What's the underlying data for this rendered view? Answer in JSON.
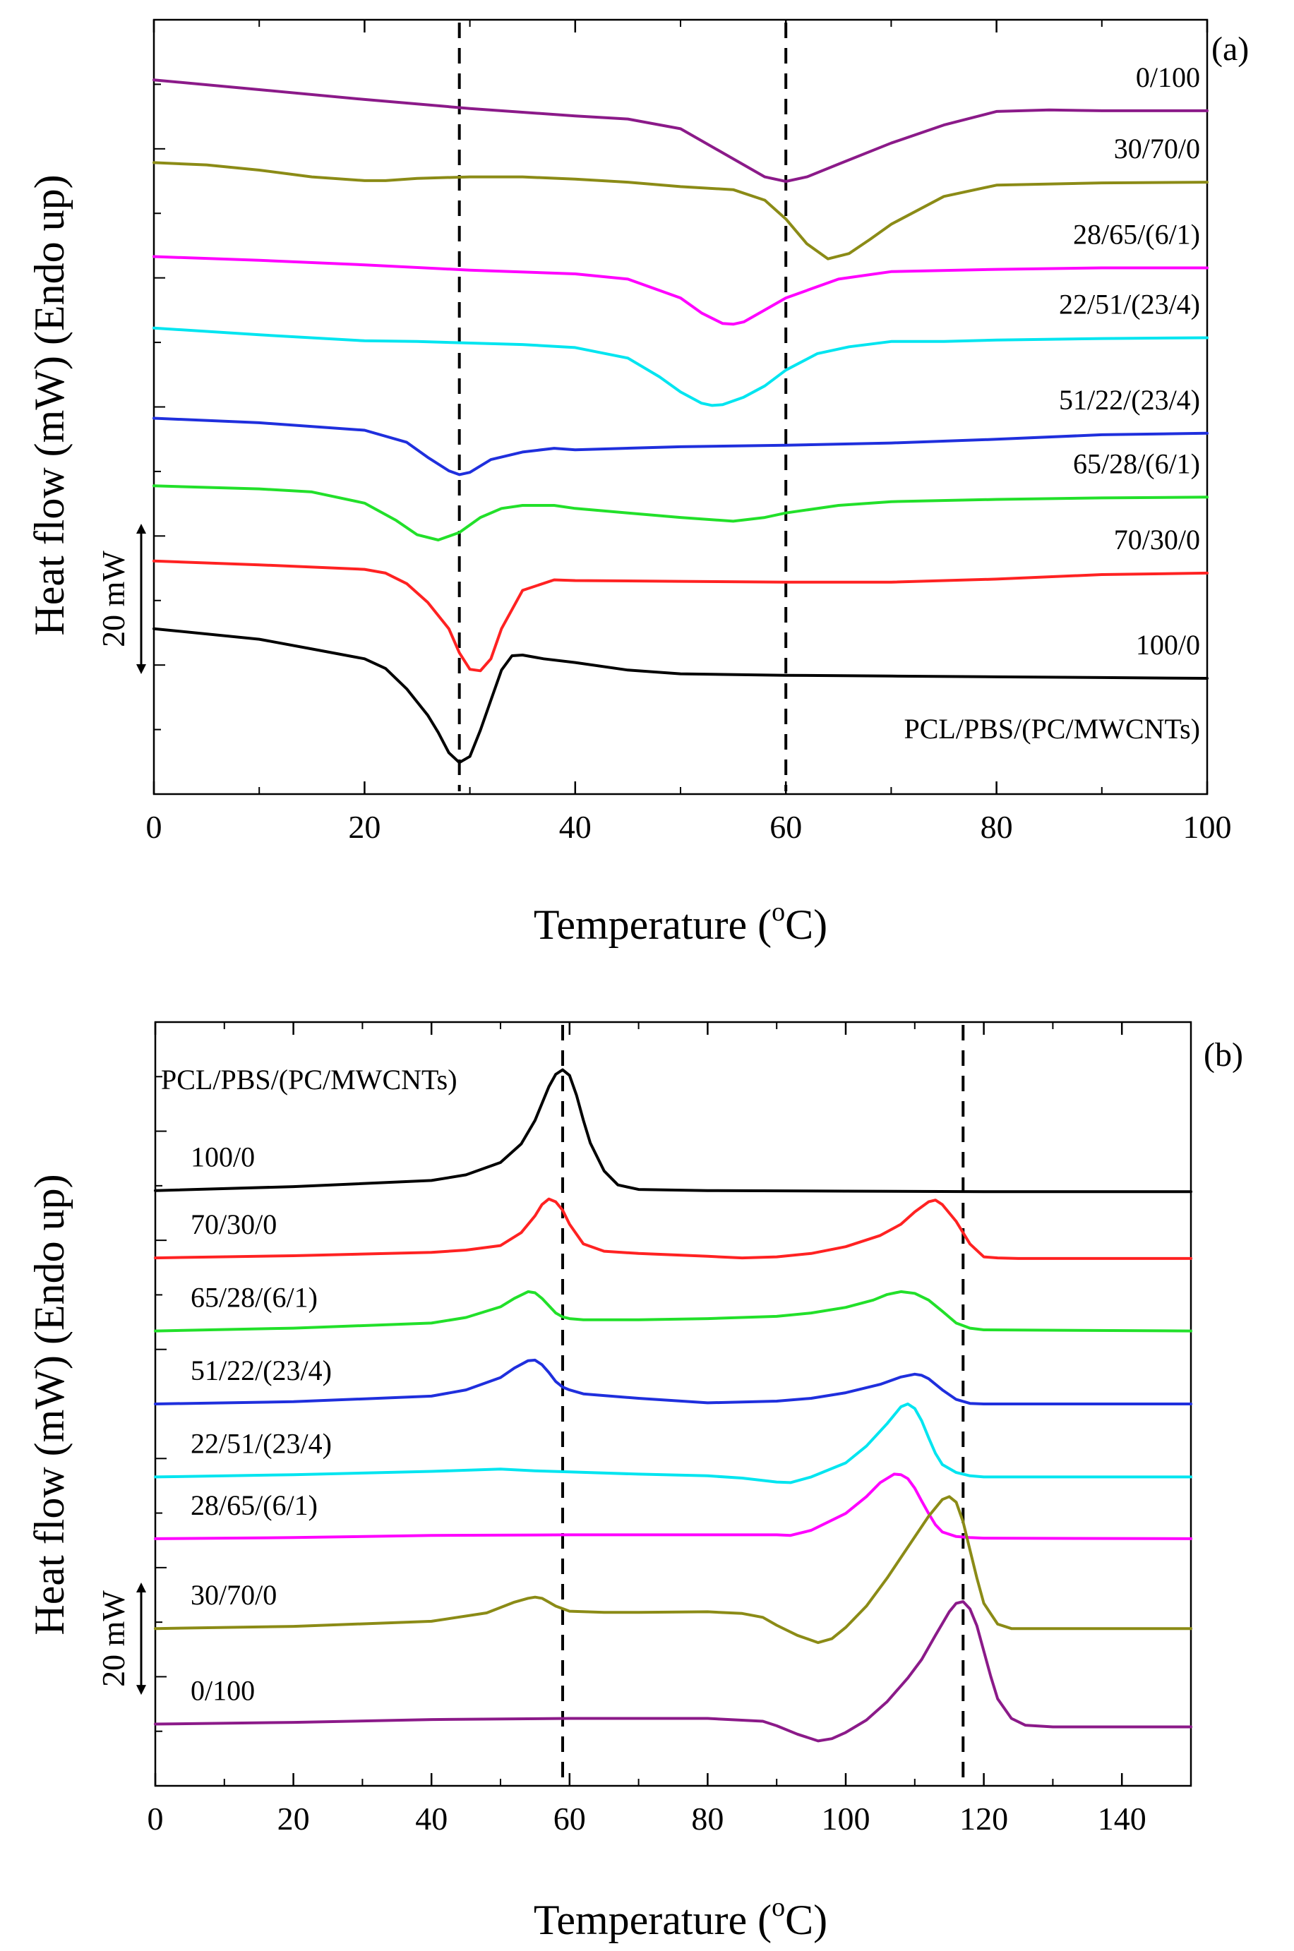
{
  "chart_data": [
    {
      "type": "line",
      "title": "(a)",
      "xlabel": "Temperature (°C)",
      "xlabel_main": "Temperature (",
      "xlabel_sup": "o",
      "xlabel_end": "C)",
      "ylabel": "Heat flow (mW) (Endo up)",
      "xlim": [
        0,
        100
      ],
      "x_ticks": [
        0,
        20,
        40,
        60,
        80,
        100
      ],
      "x_tick_labels": [
        "0",
        "20",
        "40",
        "60",
        "80",
        "100"
      ],
      "dashed_lines_x": [
        29,
        60
      ],
      "scale_bar": "20 mW",
      "scale_bar_value_mW": 20,
      "legend_title": "PCL/PBS/(PC/MWCNTs)",
      "y_unit_note": "vertical offsets in mW (arbitrary baseline)",
      "series": [
        {
          "name": "0/100",
          "color": "#8B1A89",
          "x": [
            0,
            10,
            20,
            30,
            40,
            45,
            50,
            55,
            58,
            60,
            62,
            65,
            70,
            75,
            80,
            85,
            90,
            100
          ],
          "y": [
            -3,
            -4.3,
            -5.6,
            -6.8,
            -7.8,
            -8.2,
            -9.5,
            -13.5,
            -15.9,
            -16.5,
            -15.9,
            -14.2,
            -11.4,
            -9,
            -7.2,
            -7,
            -7.1,
            -7.1
          ]
        },
        {
          "name": "30/70/0",
          "color": "#8B8B16",
          "x": [
            0,
            5,
            10,
            15,
            20,
            22,
            25,
            30,
            35,
            40,
            45,
            50,
            55,
            58,
            60,
            62,
            64,
            66,
            68,
            70,
            75,
            80,
            90,
            100
          ],
          "y": [
            -14,
            -14.3,
            -15,
            -15.9,
            -16.4,
            -16.4,
            -16.1,
            -15.9,
            -15.9,
            -16.2,
            -16.6,
            -17.2,
            -17.6,
            -19,
            -21.5,
            -24.8,
            -26.8,
            -26.1,
            -24.2,
            -22.2,
            -18.5,
            -17,
            -16.7,
            -16.6
          ]
        },
        {
          "name": "28/65/(6/1)",
          "color": "#FF00FF",
          "x": [
            0,
            10,
            20,
            30,
            40,
            45,
            50,
            52,
            54,
            55,
            56,
            58,
            60,
            65,
            70,
            80,
            90,
            100
          ],
          "y": [
            -26.5,
            -27,
            -27.6,
            -28.3,
            -28.8,
            -29.5,
            -32,
            -34,
            -35.4,
            -35.5,
            -35.2,
            -33.6,
            -32,
            -29.5,
            -28.5,
            -28.2,
            -28,
            -28
          ]
        },
        {
          "name": "22/51/(23/4)",
          "color": "#00E5F0",
          "x": [
            0,
            10,
            20,
            25,
            30,
            35,
            40,
            45,
            48,
            50,
            52,
            53,
            54,
            56,
            58,
            60,
            63,
            66,
            70,
            75,
            80,
            90,
            100
          ],
          "y": [
            -36,
            -36.9,
            -37.7,
            -37.8,
            -38,
            -38.2,
            -38.6,
            -40,
            -42.5,
            -44.5,
            -46,
            -46.3,
            -46.2,
            -45.2,
            -43.7,
            -41.6,
            -39.4,
            -38.5,
            -37.8,
            -37.8,
            -37.6,
            -37.4,
            -37.3
          ]
        },
        {
          "name": "51/22/(23/4)",
          "color": "#1F2FDD",
          "x": [
            0,
            10,
            20,
            24,
            26,
            28,
            29,
            30,
            32,
            35,
            38,
            40,
            50,
            60,
            70,
            80,
            90,
            100
          ],
          "y": [
            -48,
            -48.6,
            -49.6,
            -51.2,
            -53.2,
            -55,
            -55.5,
            -55.2,
            -53.5,
            -52.5,
            -52,
            -52.2,
            -51.8,
            -51.6,
            -51.3,
            -50.8,
            -50.2,
            -50
          ]
        },
        {
          "name": "65/28/(6/1)",
          "color": "#22E02A",
          "x": [
            0,
            10,
            15,
            20,
            23,
            25,
            27,
            29,
            31,
            33,
            35,
            38,
            40,
            45,
            50,
            55,
            58,
            60,
            65,
            70,
            80,
            90,
            100
          ],
          "y": [
            -57,
            -57.4,
            -57.8,
            -59.3,
            -61.6,
            -63.5,
            -64.2,
            -63.2,
            -61.2,
            -60,
            -59.6,
            -59.6,
            -60,
            -60.6,
            -61.2,
            -61.7,
            -61.2,
            -60.6,
            -59.6,
            -59.1,
            -58.8,
            -58.6,
            -58.5
          ]
        },
        {
          "name": "70/30/0",
          "color": "#FF2222",
          "x": [
            0,
            10,
            20,
            22,
            24,
            26,
            28,
            29,
            30,
            31,
            32,
            33,
            35,
            38,
            40,
            50,
            60,
            70,
            80,
            90,
            100
          ],
          "y": [
            -67,
            -67.5,
            -68.1,
            -68.6,
            -70,
            -72.5,
            -76,
            -79.2,
            -81.4,
            -81.6,
            -80,
            -76,
            -70.9,
            -69.5,
            -69.6,
            -69.7,
            -69.8,
            -69.8,
            -69.4,
            -68.8,
            -68.6
          ]
        },
        {
          "name": "100/0",
          "color": "#000000",
          "x": [
            0,
            10,
            15,
            20,
            22,
            24,
            26,
            27,
            28,
            29,
            30,
            31,
            32,
            33,
            34,
            35,
            37,
            40,
            45,
            50,
            60,
            70,
            80,
            90,
            100
          ],
          "y": [
            -76,
            -77.4,
            -78.7,
            -80,
            -81.3,
            -84,
            -87.5,
            -89.8,
            -92.5,
            -93.8,
            -93,
            -89.5,
            -85.5,
            -81.5,
            -79.6,
            -79.5,
            -80,
            -80.5,
            -81.5,
            -82,
            -82.2,
            -82.3,
            -82.4,
            -82.5,
            -82.6
          ]
        }
      ]
    },
    {
      "type": "line",
      "title": "(b)",
      "xlabel": "Temperature (°C)",
      "xlabel_main": "Temperature (",
      "xlabel_sup": "o",
      "xlabel_end": "C)",
      "ylabel": "Heat flow (mW) (Endo up)",
      "xlim": [
        0,
        150
      ],
      "x_ticks": [
        0,
        20,
        40,
        60,
        80,
        100,
        120,
        140
      ],
      "x_tick_labels": [
        "0",
        "20",
        "40",
        "60",
        "80",
        "100",
        "120",
        "140"
      ],
      "dashed_lines_x": [
        59,
        117
      ],
      "scale_bar": "20 mW",
      "scale_bar_value_mW": 20,
      "legend_title": "PCL/PBS/(PC/MWCNTs)",
      "y_unit_note": "vertical offsets in mW (arbitrary baseline)",
      "series": [
        {
          "name": "100/0",
          "color": "#000000",
          "x": [
            0,
            20,
            40,
            45,
            50,
            53,
            55,
            56,
            57,
            58,
            59,
            60,
            61,
            62,
            63,
            65,
            67,
            70,
            80,
            100,
            120,
            150
          ],
          "y": [
            0,
            0.7,
            1.8,
            2.8,
            5,
            8.3,
            12.5,
            15.5,
            18.5,
            20.7,
            21.5,
            20.5,
            17,
            12.5,
            8.5,
            3.5,
            1,
            0.2,
            0,
            -0.1,
            -0.2,
            -0.2
          ]
        },
        {
          "name": "70/30/0",
          "color": "#FF2222",
          "x": [
            0,
            20,
            40,
            45,
            50,
            53,
            55,
            56,
            57,
            58,
            59,
            60,
            62,
            65,
            70,
            80,
            85,
            90,
            95,
            100,
            105,
            108,
            110,
            112,
            113,
            114,
            116,
            118,
            120,
            122,
            125,
            150
          ],
          "y": [
            -12,
            -11.6,
            -11,
            -10.6,
            -9.8,
            -7.5,
            -4.5,
            -2.5,
            -1.5,
            -2,
            -3.5,
            -6,
            -9.5,
            -10.8,
            -11.2,
            -11.7,
            -12,
            -11.8,
            -11.2,
            -10,
            -8,
            -6,
            -3.8,
            -2,
            -1.7,
            -2.5,
            -5.5,
            -9.5,
            -11.8,
            -12,
            -12.1,
            -12.1
          ]
        },
        {
          "name": "65/28/(6/1)",
          "color": "#22E02A",
          "x": [
            0,
            20,
            40,
            45,
            50,
            52,
            54,
            55,
            56,
            57,
            58,
            59,
            60,
            62,
            65,
            70,
            80,
            90,
            95,
            100,
            104,
            106,
            108,
            110,
            112,
            114,
            116,
            118,
            120,
            150
          ],
          "y": [
            -25,
            -24.5,
            -23.6,
            -22.6,
            -20.7,
            -19.2,
            -18,
            -18.2,
            -19.2,
            -20.5,
            -21.8,
            -22.5,
            -22.8,
            -23,
            -23,
            -23,
            -22.8,
            -22.4,
            -21.8,
            -20.8,
            -19.5,
            -18.5,
            -18,
            -18.3,
            -19.5,
            -21.5,
            -23.6,
            -24.5,
            -24.8,
            -25
          ]
        },
        {
          "name": "51/22/(23/4)",
          "color": "#1F2FDD",
          "x": [
            0,
            20,
            40,
            45,
            50,
            52,
            54,
            55,
            56,
            57,
            58,
            59,
            60,
            62,
            65,
            70,
            80,
            90,
            95,
            100,
            105,
            108,
            110,
            111,
            112,
            114,
            116,
            118,
            120,
            150
          ],
          "y": [
            -38,
            -37.6,
            -36.6,
            -35.5,
            -33.3,
            -31.6,
            -30.3,
            -30.2,
            -31,
            -32.4,
            -34,
            -35,
            -35.5,
            -36.2,
            -36.5,
            -37,
            -37.8,
            -37.5,
            -37,
            -36,
            -34.5,
            -33.2,
            -32.7,
            -32.9,
            -33.5,
            -35.5,
            -37.2,
            -37.9,
            -38,
            -38
          ]
        },
        {
          "name": "22/51/(23/4)",
          "color": "#00E5F0",
          "x": [
            0,
            20,
            40,
            50,
            55,
            60,
            70,
            80,
            85,
            90,
            92,
            95,
            100,
            103,
            106,
            108,
            109,
            110,
            111,
            112,
            113,
            114,
            116,
            118,
            120,
            150
          ],
          "y": [
            -51,
            -50.6,
            -50,
            -49.6,
            -49.9,
            -50.1,
            -50.5,
            -50.8,
            -51.2,
            -51.9,
            -52,
            -51,
            -48.5,
            -45.5,
            -41.5,
            -38.5,
            -38,
            -38.8,
            -41,
            -44,
            -46.8,
            -48.8,
            -50.2,
            -50.8,
            -51,
            -51
          ]
        },
        {
          "name": "28/65/(6/1)",
          "color": "#FF00FF",
          "x": [
            0,
            20,
            40,
            60,
            80,
            90,
            92,
            95,
            100,
            103,
            105,
            107,
            108,
            109,
            110,
            111,
            112,
            113,
            114,
            116,
            118,
            120,
            150
          ],
          "y": [
            -62,
            -61.8,
            -61.4,
            -61.3,
            -61.3,
            -61.3,
            -61.4,
            -60.5,
            -57.5,
            -54.5,
            -52,
            -50.5,
            -50.6,
            -51.3,
            -53,
            -55.3,
            -57.5,
            -59.5,
            -60.8,
            -61.6,
            -61.8,
            -61.9,
            -62
          ]
        },
        {
          "name": "30/70/0",
          "color": "#8B8B16",
          "x": [
            0,
            20,
            40,
            48,
            52,
            54,
            55,
            56,
            57,
            58,
            60,
            65,
            70,
            80,
            85,
            88,
            90,
            93,
            96,
            98,
            100,
            103,
            106,
            109,
            112,
            114,
            115,
            116,
            117,
            118,
            119,
            120,
            122,
            124,
            130,
            150
          ],
          "y": [
            -78,
            -77.6,
            -76.7,
            -75.2,
            -73.3,
            -72.6,
            -72.4,
            -72.6,
            -73.3,
            -74,
            -74.9,
            -75.1,
            -75.1,
            -75,
            -75.3,
            -76,
            -77.4,
            -79.2,
            -80.5,
            -79.8,
            -77.8,
            -74,
            -69,
            -63.5,
            -58,
            -55,
            -54.5,
            -55.5,
            -59,
            -64,
            -69,
            -73.5,
            -77.2,
            -78,
            -78,
            -78
          ]
        },
        {
          "name": "0/100",
          "color": "#8B1A89",
          "x": [
            0,
            20,
            40,
            60,
            80,
            88,
            90,
            93,
            96,
            98,
            100,
            103,
            106,
            109,
            111,
            113,
            115,
            116,
            117,
            118,
            119,
            120,
            121,
            122,
            124,
            126,
            130,
            150
          ],
          "y": [
            -95,
            -94.7,
            -94.2,
            -94,
            -94,
            -94.5,
            -95.3,
            -96.8,
            -98,
            -97.6,
            -96.5,
            -94.3,
            -91,
            -86.8,
            -83.5,
            -79.2,
            -75,
            -73.5,
            -73.2,
            -74.5,
            -77.5,
            -82,
            -86.5,
            -90.5,
            -94,
            -95.2,
            -95.5,
            -95.5
          ]
        }
      ]
    }
  ]
}
